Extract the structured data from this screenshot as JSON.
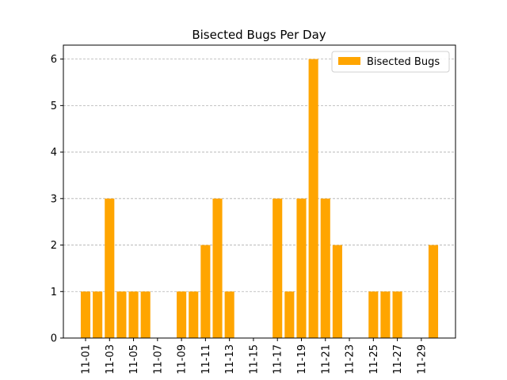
{
  "chart_data": {
    "type": "bar",
    "title": "Bisected Bugs Per Day",
    "categories": [
      "11-01",
      null,
      "11-03",
      null,
      "11-05",
      null,
      "11-07",
      null,
      "11-09",
      null,
      "11-11",
      null,
      "11-13",
      null,
      "11-15",
      null,
      "11-17",
      null,
      "11-19",
      null,
      "11-21",
      null,
      "11-23",
      null,
      "11-25",
      null,
      "11-27",
      null,
      "11-29",
      null
    ],
    "series": [
      {
        "name": "Bisected Bugs",
        "color": "#ffa500",
        "values": [
          1,
          1,
          3,
          1,
          1,
          1,
          0,
          0,
          1,
          1,
          2,
          3,
          1,
          0,
          0,
          0,
          3,
          1,
          3,
          6,
          3,
          2,
          0,
          0,
          1,
          1,
          1,
          0,
          0,
          2
        ]
      }
    ],
    "ylim": [
      0,
      6.3
    ],
    "yticks": [
      0,
      1,
      2,
      3,
      4,
      5,
      6
    ],
    "grid": true,
    "legend": "upper right"
  }
}
